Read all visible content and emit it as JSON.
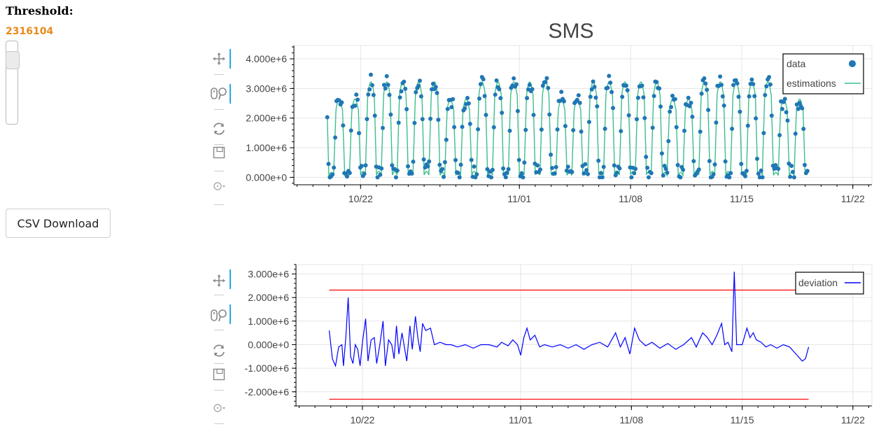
{
  "controls": {
    "threshold_label": "Threshold:",
    "threshold_value": "2316104",
    "threshold_fraction": 0.85,
    "csv_button": "CSV Download"
  },
  "toolbars": [
    {
      "name": "top",
      "tools": [
        "pan-icon",
        "wheel-zoom-icon",
        "reset-icon",
        "save-icon",
        "hover-icon"
      ],
      "active": [
        "pan-icon",
        "wheel-zoom-icon"
      ]
    },
    {
      "name": "bottom",
      "tools": [
        "pan-icon",
        "wheel-zoom-icon",
        "reset-icon",
        "save-icon",
        "hover-icon"
      ],
      "active": [
        "pan-icon",
        "wheel-zoom-icon"
      ]
    }
  ],
  "colors": {
    "data": "#1f77b4",
    "estimations": "#3bbf8c",
    "deviation": "#0000ff",
    "threshold": "#ff0000",
    "accent": "#26aae1",
    "threshold_value": "#e8891d"
  },
  "chart_data": [
    {
      "type": "scatter+line",
      "title": "SMS",
      "x_ticks": [
        "10/22",
        "11/01",
        "11/08",
        "11/15",
        "11/22"
      ],
      "x_tick_days": [
        0,
        10,
        17,
        24,
        31
      ],
      "x_range": [
        -4.2,
        32.2
      ],
      "y_ticks": [
        "0.000e+0",
        "1.000e+6",
        "2.000e+6",
        "3.000e+6",
        "4.000e+6"
      ],
      "y_tick_values": [
        0,
        1000000,
        2000000,
        3000000,
        4000000
      ],
      "ylim": [
        -250000,
        4450000
      ],
      "series_x_range_days": [
        -2.1,
        28.2
      ],
      "period_days": 1,
      "legend": [
        {
          "label": "data",
          "kind": "circle"
        },
        {
          "label": "estimations",
          "kind": "line"
        }
      ],
      "legend_position": "top-right",
      "grid": true
    },
    {
      "type": "line",
      "x_ticks": [
        "10/22",
        "11/01",
        "11/08",
        "11/15",
        "11/22"
      ],
      "x_tick_days": [
        0,
        10,
        17,
        24,
        31
      ],
      "x_range": [
        -4.2,
        32.2
      ],
      "y_ticks": [
        "3.000e+6",
        "2.000e+6",
        "1.000e+6",
        "0.000e+0",
        "-1.000e+6",
        "-2.000e+6"
      ],
      "y_tick_values": [
        3000000,
        2000000,
        1000000,
        0,
        -1000000,
        -2000000
      ],
      "ylim": [
        -2600000,
        3400000
      ],
      "threshold_upper": 2316104,
      "threshold_lower": -2316104,
      "legend": [
        {
          "label": "deviation",
          "kind": "line"
        }
      ],
      "legend_position": "top-right",
      "grid": true,
      "deviation": [
        [
          -2.1,
          600000
        ],
        [
          -1.9,
          -600000
        ],
        [
          -1.7,
          -900000
        ],
        [
          -1.5,
          -100000
        ],
        [
          -1.3,
          0
        ],
        [
          -1.2,
          -900000
        ],
        [
          -1.05,
          300000
        ],
        [
          -0.9,
          2000000
        ],
        [
          -0.75,
          -500000
        ],
        [
          -0.6,
          -800000
        ],
        [
          -0.45,
          0
        ],
        [
          -0.3,
          -200000
        ],
        [
          -0.15,
          -900000
        ],
        [
          0.0,
          100000
        ],
        [
          0.2,
          1100000
        ],
        [
          0.35,
          -700000
        ],
        [
          0.55,
          200000
        ],
        [
          0.75,
          300000
        ],
        [
          0.9,
          -800000
        ],
        [
          1.1,
          0
        ],
        [
          1.3,
          1000000
        ],
        [
          1.45,
          -900000
        ],
        [
          1.65,
          200000
        ],
        [
          1.85,
          0
        ],
        [
          2.0,
          -600000
        ],
        [
          2.15,
          800000
        ],
        [
          2.3,
          -400000
        ],
        [
          2.5,
          500000
        ],
        [
          2.65,
          -100000
        ],
        [
          2.8,
          -700000
        ],
        [
          3.0,
          800000
        ],
        [
          3.15,
          -200000
        ],
        [
          3.35,
          1200000
        ],
        [
          3.5,
          300000
        ],
        [
          3.65,
          -300000
        ],
        [
          3.8,
          900000
        ],
        [
          4.0,
          600000
        ],
        [
          4.3,
          700000
        ],
        [
          4.55,
          0
        ],
        [
          4.9,
          100000
        ],
        [
          5.3,
          0
        ],
        [
          5.6,
          0
        ],
        [
          6.0,
          -100000
        ],
        [
          6.5,
          0
        ],
        [
          7.0,
          -150000
        ],
        [
          7.5,
          0
        ],
        [
          8.0,
          0
        ],
        [
          8.5,
          -100000
        ],
        [
          8.8,
          100000
        ],
        [
          9.2,
          -50000
        ],
        [
          9.5,
          200000
        ],
        [
          9.8,
          0
        ],
        [
          10.0,
          -450000
        ],
        [
          10.2,
          300000
        ],
        [
          10.4,
          700000
        ],
        [
          10.6,
          200000
        ],
        [
          10.9,
          400000
        ],
        [
          11.2,
          -100000
        ],
        [
          11.5,
          0
        ],
        [
          12.0,
          -100000
        ],
        [
          12.5,
          0
        ],
        [
          13.0,
          -150000
        ],
        [
          13.5,
          0
        ],
        [
          14.0,
          -200000
        ],
        [
          14.5,
          0
        ],
        [
          15.0,
          100000
        ],
        [
          15.5,
          -100000
        ],
        [
          16.0,
          500000
        ],
        [
          16.3,
          -100000
        ],
        [
          16.6,
          300000
        ],
        [
          16.9,
          -400000
        ],
        [
          17.2,
          700000
        ],
        [
          17.5,
          200000
        ],
        [
          17.9,
          -50000
        ],
        [
          18.3,
          100000
        ],
        [
          18.8,
          -150000
        ],
        [
          19.3,
          50000
        ],
        [
          19.8,
          -200000
        ],
        [
          20.3,
          0
        ],
        [
          20.8,
          300000
        ],
        [
          21.1,
          -100000
        ],
        [
          21.5,
          500000
        ],
        [
          21.8,
          300000
        ],
        [
          22.1,
          0
        ],
        [
          22.4,
          400000
        ],
        [
          22.7,
          900000
        ],
        [
          22.9,
          0
        ],
        [
          23.1,
          100000
        ],
        [
          23.35,
          -300000
        ],
        [
          23.5,
          3100000
        ],
        [
          23.65,
          0
        ],
        [
          24.0,
          0
        ],
        [
          24.3,
          700000
        ],
        [
          24.5,
          300000
        ],
        [
          24.7,
          500000
        ],
        [
          24.9,
          200000
        ],
        [
          25.2,
          100000
        ],
        [
          25.5,
          -100000
        ],
        [
          25.8,
          0
        ],
        [
          26.2,
          -150000
        ],
        [
          26.6,
          0
        ],
        [
          27.0,
          -100000
        ],
        [
          27.4,
          -400000
        ],
        [
          27.8,
          -700000
        ],
        [
          28.0,
          -600000
        ],
        [
          28.2,
          -100000
        ]
      ]
    }
  ]
}
